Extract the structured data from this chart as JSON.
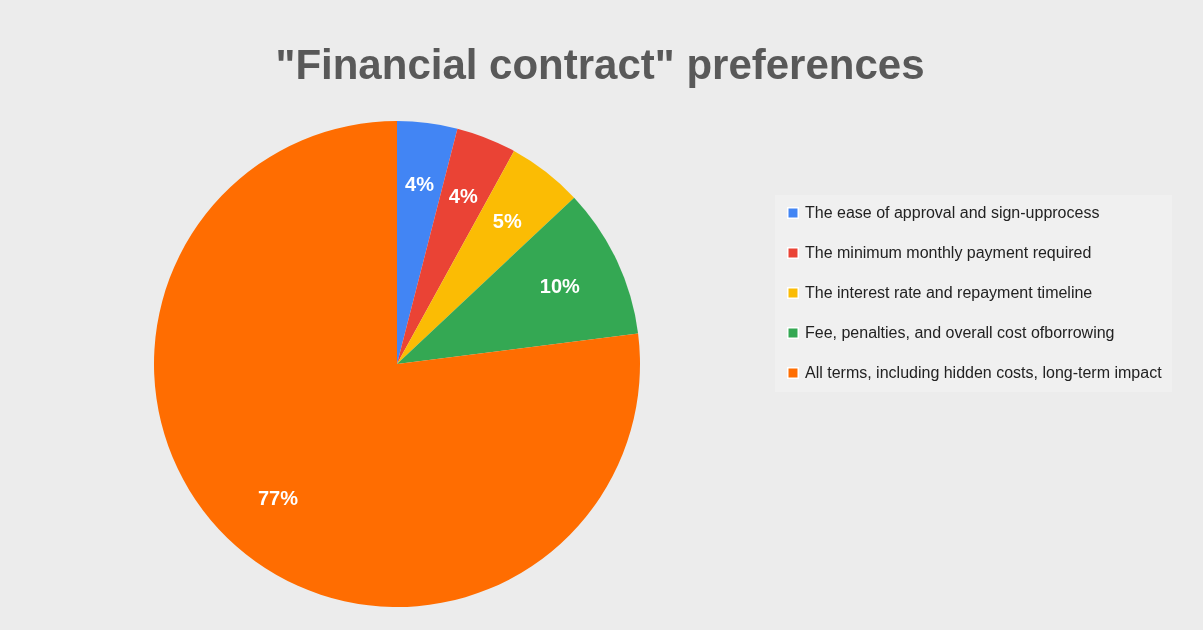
{
  "chart_data": {
    "type": "pie",
    "title": "\"Financial contract\" preferences",
    "categories": [
      "The ease of approval and sign-upprocess",
      "The minimum monthly payment required",
      "The interest rate and repayment timeline",
      "Fee, penalties, and overall cost ofborrowing",
      "All terms, including hidden costs, long-term impact"
    ],
    "values": [
      4,
      4,
      5,
      10,
      77
    ],
    "colors": [
      "#4285f4",
      "#ea4335",
      "#fbbc04",
      "#34a853",
      "#ff6d01"
    ],
    "value_labels": [
      "4%",
      "4%",
      "5%",
      "10%",
      "77%"
    ],
    "legend": "right"
  }
}
